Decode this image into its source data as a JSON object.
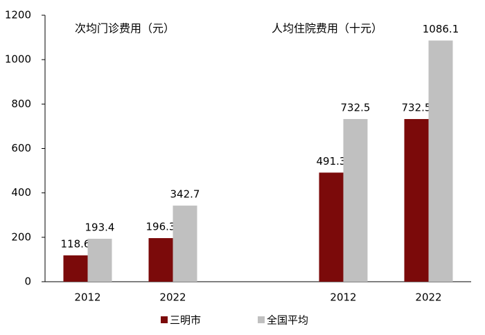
{
  "chart_data": {
    "type": "bar",
    "annotations": [
      "次均门诊费用（元）",
      "人均住院费用（十元）"
    ],
    "categories": [
      "2012",
      "2022",
      null,
      "2012",
      "2022"
    ],
    "series": [
      {
        "name": "三明市",
        "color": "#7b0a0a",
        "values": [
          118.6,
          196.3,
          null,
          491.3,
          732.5
        ]
      },
      {
        "name": "全国平均",
        "color": "#c0c0c0",
        "values": [
          193.4,
          342.7,
          null,
          732.5,
          1086.1
        ]
      }
    ],
    "ylim": [
      0,
      1200
    ],
    "yticks": [
      0,
      200,
      400,
      600,
      800,
      1000,
      1200
    ]
  }
}
